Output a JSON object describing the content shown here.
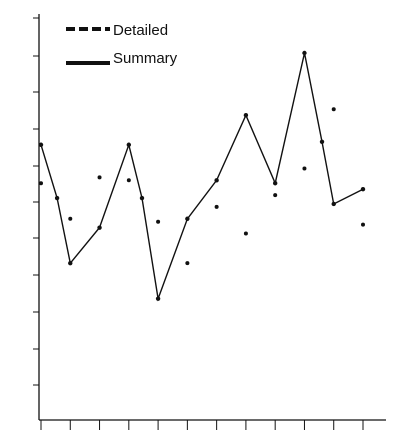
{
  "chart_data": {
    "type": "line",
    "title": "",
    "xlabel": "",
    "ylabel": "",
    "x_ticks_count": 12,
    "y_ticks_count": 11,
    "ylim": [
      0,
      10
    ],
    "legend": {
      "placement": "top-left",
      "entries": [
        {
          "label": "Detailed",
          "style": "dashed"
        },
        {
          "label": "Summary",
          "style": "solid"
        }
      ]
    },
    "series": [
      {
        "name": "Summary",
        "style": "line",
        "points": [
          [
            0.0,
            6.9
          ],
          [
            0.55,
            5.1
          ],
          [
            1.0,
            2.9
          ],
          [
            2.0,
            4.1
          ],
          [
            3.0,
            6.9
          ],
          [
            3.45,
            5.1
          ],
          [
            4.0,
            1.7
          ],
          [
            5.0,
            4.4
          ],
          [
            6.0,
            5.7
          ],
          [
            7.0,
            7.9
          ],
          [
            8.0,
            5.6
          ],
          [
            9.0,
            10.0
          ],
          [
            9.6,
            7.0
          ],
          [
            10.0,
            4.9
          ],
          [
            11.0,
            5.4
          ]
        ]
      },
      {
        "name": "Detailed",
        "style": "points",
        "points": [
          [
            0.0,
            5.6
          ],
          [
            1.0,
            4.4
          ],
          [
            2.0,
            5.8
          ],
          [
            3.0,
            5.7
          ],
          [
            4.0,
            4.3
          ],
          [
            5.0,
            2.9
          ],
          [
            6.0,
            4.8
          ],
          [
            7.0,
            3.9
          ],
          [
            8.0,
            5.2
          ],
          [
            9.0,
            6.1
          ],
          [
            10.0,
            8.1
          ],
          [
            11.0,
            4.2
          ]
        ]
      }
    ]
  }
}
